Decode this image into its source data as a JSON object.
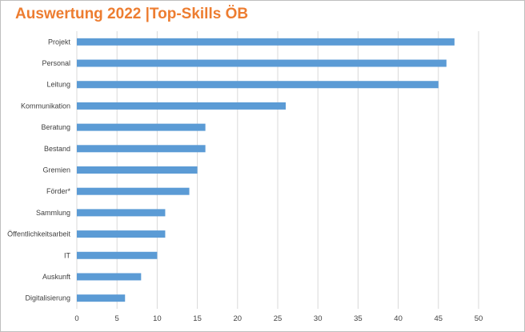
{
  "chart_data": {
    "type": "bar",
    "orientation": "horizontal",
    "title": "Auswertung 2022 |Top-Skills ÖB",
    "categories": [
      "Projekt",
      "Personal",
      "Leitung",
      "Kommunikation",
      "Beratung",
      "Bestand",
      "Gremien",
      "Förder*",
      "Sammlung",
      "Öffentlichkeitsarbeit",
      "IT",
      "Auskunft",
      "Digitalisierung"
    ],
    "values": [
      47,
      46,
      45,
      26,
      16,
      16,
      15,
      14,
      11,
      11,
      10,
      8,
      6
    ],
    "xlim": [
      0,
      50
    ],
    "xticks": [
      "0",
      "5",
      "10",
      "15",
      "20",
      "25",
      "30",
      "35",
      "40",
      "45",
      "50"
    ],
    "grid": true,
    "bar_color": "#5b9bd5",
    "title_color": "#ed7d31",
    "legend": "none"
  }
}
